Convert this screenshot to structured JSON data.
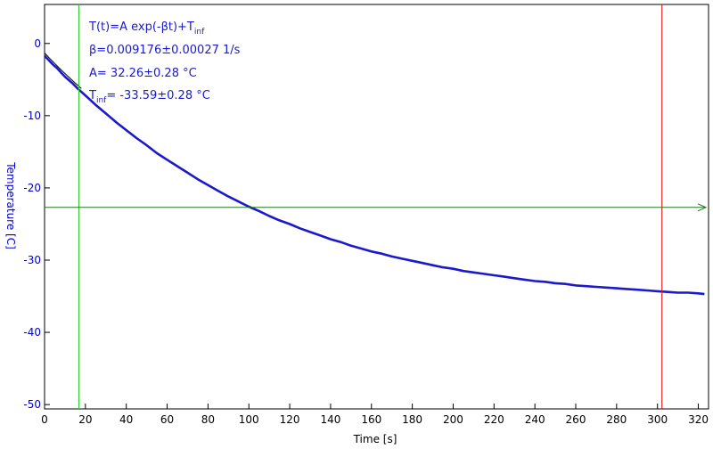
{
  "chart_data": {
    "type": "line",
    "xlabel": "Time [s]",
    "ylabel": "Temperature [C]",
    "xlim": [
      0,
      325
    ],
    "ylim": [
      -50.6,
      5.4
    ],
    "x_ticks": [
      0,
      20,
      40,
      60,
      80,
      100,
      120,
      140,
      160,
      180,
      200,
      220,
      240,
      260,
      280,
      300,
      320
    ],
    "y_ticks": [
      0,
      -10,
      -20,
      -30,
      -40,
      -50
    ],
    "grid": false,
    "fit": {
      "model": "exponential",
      "A": 32.26,
      "beta": 0.009176,
      "T_inf": -33.59
    },
    "annotations": {
      "formula": {
        "main": "T(t)=A exp(-βt)+T",
        "sub": "inf"
      },
      "beta": "β=0.009176±0.00027 1/s",
      "A": "A= 32.26±0.28 °C",
      "tinf": {
        "pre": "T",
        "sub": "inf",
        "post": "= -33.59±0.28 °C"
      }
    },
    "cursors": {
      "vertical_green_x": 16.8,
      "vertical_red_x": 302.2,
      "horizontal_green_y": -22.7
    },
    "series": [
      {
        "x": [
          0,
          2,
          4,
          6,
          8,
          10,
          12,
          14,
          16,
          18,
          20,
          25,
          30,
          35,
          40,
          45,
          50,
          55,
          60,
          65,
          70,
          75,
          80,
          85,
          90,
          95,
          100,
          105,
          110,
          115,
          120,
          125,
          130,
          135,
          140,
          145,
          150,
          155,
          160,
          165,
          170,
          175,
          180,
          185,
          190,
          195,
          200,
          205,
          210,
          215,
          220,
          225,
          230,
          235,
          240,
          245,
          250,
          255,
          260,
          265,
          270,
          275,
          280,
          285,
          290,
          295,
          300,
          305,
          310,
          315,
          320,
          323
        ],
        "y": [
          -1.7,
          -2.3,
          -2.9,
          -3.4,
          -4.0,
          -4.6,
          -5.1,
          -5.6,
          -6.2,
          -6.7,
          -7.2,
          -8.5,
          -9.7,
          -10.9,
          -12.0,
          -13.1,
          -14.1,
          -15.2,
          -16.1,
          -17.0,
          -17.9,
          -18.8,
          -19.6,
          -20.4,
          -21.2,
          -21.9,
          -22.6,
          -23.2,
          -23.9,
          -24.5,
          -25.0,
          -25.6,
          -26.1,
          -26.6,
          -27.1,
          -27.5,
          -28.0,
          -28.4,
          -28.8,
          -29.1,
          -29.5,
          -29.8,
          -30.1,
          -30.4,
          -30.7,
          -31.0,
          -31.2,
          -31.5,
          -31.7,
          -31.9,
          -32.1,
          -32.3,
          -32.5,
          -32.7,
          -32.9,
          -33.0,
          -33.2,
          -33.3,
          -33.5,
          -33.6,
          -33.7,
          -33.8,
          -33.9,
          -34.0,
          -34.1,
          -34.2,
          -34.3,
          -34.4,
          -34.5,
          -34.5,
          -34.6,
          -34.7
        ]
      }
    ],
    "colors": {
      "data": "#1a1acc",
      "axes_text": "#0000cc",
      "fit": "#000000",
      "green_cursor": "#33cc33",
      "red_cursor": "#dd2222",
      "hline": "#1a7a1a",
      "axis_line": "#000000"
    }
  }
}
